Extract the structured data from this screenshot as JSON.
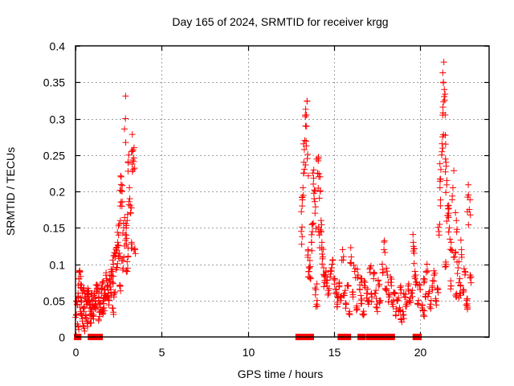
{
  "chart_data": {
    "type": "scatter",
    "title": "Day 165 of 2024, SRMTID for receiver krgg",
    "xlabel": "GPS time / hours",
    "ylabel": "SRMTID / TECUs",
    "xlim": [
      0,
      24
    ],
    "ylim": [
      0,
      0.4
    ],
    "xticks": [
      0,
      5,
      10,
      15,
      20
    ],
    "xtick_labels": [
      "0",
      "5",
      "10",
      "15",
      "20"
    ],
    "yticks": [
      0,
      0.05,
      0.1,
      0.15,
      0.2,
      0.25,
      0.3,
      0.35,
      0.4
    ],
    "ytick_labels": [
      "0",
      "0.05",
      "0.1",
      "0.15",
      "0.2",
      "0.25",
      "0.3",
      "0.35",
      "0.4"
    ],
    "grid": true,
    "legend": "none",
    "marker": "plus",
    "color": "#ff0000",
    "series": [
      {
        "name": "SRMTID",
        "points": [
          [
            0.05,
            0.03
          ],
          [
            0.1,
            0.045
          ],
          [
            0.15,
            0.06
          ],
          [
            0.2,
            0.08
          ],
          [
            0.25,
            0.09
          ],
          [
            0.3,
            0.035
          ],
          [
            0.35,
            0.05
          ],
          [
            0.4,
            0.025
          ],
          [
            0.45,
            0.065
          ],
          [
            0.5,
            0.04
          ],
          [
            0.55,
            0.055
          ],
          [
            0.6,
            0.03
          ],
          [
            0.65,
            0.045
          ],
          [
            0.7,
            0.02
          ],
          [
            0.75,
            0.06
          ],
          [
            0.8,
            0.05
          ],
          [
            0.85,
            0.04
          ],
          [
            0.9,
            0.035
          ],
          [
            0.95,
            0.055
          ],
          [
            1.0,
            0.045
          ],
          [
            1.05,
            0.03
          ],
          [
            1.1,
            0.06
          ],
          [
            1.15,
            0.05
          ],
          [
            1.2,
            0.04
          ],
          [
            1.25,
            0.065
          ],
          [
            1.3,
            0.07
          ],
          [
            1.35,
            0.055
          ],
          [
            1.4,
            0.045
          ],
          [
            1.45,
            0.035
          ],
          [
            1.5,
            0.06
          ],
          [
            1.55,
            0.075
          ],
          [
            1.6,
            0.05
          ],
          [
            1.65,
            0.04
          ],
          [
            1.7,
            0.065
          ],
          [
            1.75,
            0.055
          ],
          [
            1.8,
            0.08
          ],
          [
            1.85,
            0.07
          ],
          [
            1.9,
            0.06
          ],
          [
            1.95,
            0.05
          ],
          [
            2.0,
            0.085
          ],
          [
            2.05,
            0.065
          ],
          [
            2.1,
            0.09
          ],
          [
            2.15,
            0.075
          ],
          [
            2.2,
            0.1
          ],
          [
            2.25,
            0.06
          ],
          [
            2.3,
            0.11
          ],
          [
            2.35,
            0.12
          ],
          [
            2.4,
            0.095
          ],
          [
            2.45,
            0.13
          ],
          [
            2.5,
            0.14
          ],
          [
            2.55,
            0.115
          ],
          [
            2.6,
            0.18
          ],
          [
            2.65,
            0.22
          ],
          [
            2.7,
            0.2
          ],
          [
            2.75,
            0.105
          ],
          [
            2.8,
            0.15
          ],
          [
            2.85,
            0.125
          ],
          [
            2.9,
            0.3
          ],
          [
            2.95,
            0.14
          ],
          [
            3.0,
            0.16
          ],
          [
            3.05,
            0.11
          ],
          [
            3.1,
            0.25
          ],
          [
            3.15,
            0.19
          ],
          [
            3.2,
            0.17
          ],
          [
            3.25,
            0.13
          ],
          [
            3.3,
            0.255
          ],
          [
            3.35,
            0.23
          ],
          [
            3.4,
            0.26
          ],
          [
            3.45,
            0.12
          ],
          [
            0.5,
            0.012
          ],
          [
            1.1,
            0.042
          ],
          [
            0.3,
            0.068
          ],
          [
            0.7,
            0.058
          ],
          [
            1.6,
            0.036
          ],
          [
            2.2,
            0.034
          ],
          [
            0.15,
            0.015
          ],
          [
            0.9,
            0.025
          ],
          [
            1.4,
            0.028
          ],
          [
            2.6,
            0.07
          ],
          [
            3.0,
            0.09
          ],
          [
            13.1,
            0.145
          ],
          [
            13.15,
            0.18
          ],
          [
            13.2,
            0.205
          ],
          [
            13.25,
            0.24
          ],
          [
            13.3,
            0.27
          ],
          [
            13.35,
            0.29
          ],
          [
            13.4,
            0.305
          ],
          [
            13.45,
            0.245
          ],
          [
            13.5,
            0.12
          ],
          [
            13.55,
            0.09
          ],
          [
            13.6,
            0.105
          ],
          [
            13.65,
            0.08
          ],
          [
            13.7,
            0.13
          ],
          [
            13.75,
            0.155
          ],
          [
            13.8,
            0.21
          ],
          [
            13.85,
            0.19
          ],
          [
            13.9,
            0.17
          ],
          [
            13.95,
            0.065
          ],
          [
            14.0,
            0.045
          ],
          [
            14.05,
            0.225
          ],
          [
            14.1,
            0.245
          ],
          [
            14.15,
            0.14
          ],
          [
            14.2,
            0.2
          ],
          [
            14.25,
            0.16
          ],
          [
            14.3,
            0.13
          ],
          [
            14.35,
            0.11
          ],
          [
            14.4,
            0.095
          ],
          [
            14.45,
            0.075
          ],
          [
            14.5,
            0.085
          ],
          [
            14.6,
            0.07
          ],
          [
            14.7,
            0.06
          ],
          [
            14.8,
            0.09
          ],
          [
            14.9,
            0.1
          ],
          [
            15.0,
            0.08
          ],
          [
            15.1,
            0.065
          ],
          [
            15.2,
            0.055
          ],
          [
            15.3,
            0.075
          ],
          [
            15.4,
            0.05
          ],
          [
            15.5,
            0.12
          ],
          [
            15.6,
            0.06
          ],
          [
            15.7,
            0.045
          ],
          [
            15.8,
            0.07
          ],
          [
            15.9,
            0.035
          ],
          [
            16.0,
            0.11
          ],
          [
            16.1,
            0.055
          ],
          [
            16.2,
            0.09
          ],
          [
            16.3,
            0.04
          ],
          [
            16.4,
            0.085
          ],
          [
            16.5,
            0.065
          ],
          [
            16.6,
            0.05
          ],
          [
            16.7,
            0.03
          ],
          [
            16.8,
            0.075
          ],
          [
            16.9,
            0.06
          ],
          [
            17.0,
            0.045
          ],
          [
            17.1,
            0.095
          ],
          [
            17.2,
            0.055
          ],
          [
            17.3,
            0.08
          ],
          [
            17.4,
            0.06
          ],
          [
            17.5,
            0.04
          ],
          [
            17.6,
            0.07
          ],
          [
            17.7,
            0.05
          ],
          [
            17.8,
            0.1
          ],
          [
            17.9,
            0.12
          ],
          [
            18.0,
            0.065
          ],
          [
            18.1,
            0.085
          ],
          [
            18.2,
            0.055
          ],
          [
            18.3,
            0.075
          ],
          [
            18.4,
            0.045
          ],
          [
            18.5,
            0.06
          ],
          [
            18.6,
            0.035
          ],
          [
            18.7,
            0.05
          ],
          [
            18.8,
            0.04
          ],
          [
            18.9,
            0.065
          ],
          [
            19.0,
            0.03
          ],
          [
            19.1,
            0.055
          ],
          [
            19.2,
            0.045
          ],
          [
            19.3,
            0.07
          ],
          [
            19.4,
            0.05
          ],
          [
            19.5,
            0.06
          ],
          [
            19.6,
            0.13
          ],
          [
            19.65,
            0.115
          ],
          [
            19.7,
            0.09
          ],
          [
            19.8,
            0.075
          ],
          [
            19.9,
            0.05
          ],
          [
            20.0,
            0.065
          ],
          [
            20.1,
            0.04
          ],
          [
            20.2,
            0.08
          ],
          [
            20.3,
            0.055
          ],
          [
            20.4,
            0.1
          ],
          [
            20.5,
            0.06
          ],
          [
            20.6,
            0.045
          ],
          [
            20.7,
            0.07
          ],
          [
            20.8,
            0.085
          ],
          [
            20.9,
            0.05
          ],
          [
            21.0,
            0.065
          ],
          [
            21.1,
            0.14
          ],
          [
            21.15,
            0.205
          ],
          [
            21.2,
            0.23
          ],
          [
            21.25,
            0.25
          ],
          [
            21.3,
            0.275
          ],
          [
            21.35,
            0.35
          ],
          [
            21.4,
            0.34
          ],
          [
            21.45,
            0.305
          ],
          [
            21.5,
            0.24
          ],
          [
            21.55,
            0.215
          ],
          [
            21.6,
            0.18
          ],
          [
            21.65,
            0.17
          ],
          [
            21.7,
            0.15
          ],
          [
            21.8,
            0.13
          ],
          [
            21.9,
            0.205
          ],
          [
            22.0,
            0.11
          ],
          [
            22.1,
            0.16
          ],
          [
            22.2,
            0.095
          ],
          [
            22.3,
            0.08
          ],
          [
            22.4,
            0.12
          ],
          [
            22.5,
            0.065
          ],
          [
            22.6,
            0.09
          ],
          [
            22.7,
            0.05
          ],
          [
            22.75,
            0.04
          ],
          [
            22.8,
            0.195
          ],
          [
            22.85,
            0.175
          ],
          [
            22.9,
            0.085
          ],
          [
            22.3,
            0.06
          ],
          [
            21.8,
            0.07
          ],
          [
            15.2,
            0.045
          ],
          [
            16.6,
            0.08
          ],
          [
            18.9,
            0.025
          ],
          [
            20.2,
            0.03
          ],
          [
            21.5,
            0.1
          ],
          [
            22.1,
            0.055
          ]
        ],
        "zero_intervals_hours": [
          [
            0.05,
            0.1
          ],
          [
            0.15,
            0.2
          ],
          [
            0.85,
            1.1
          ],
          [
            1.3,
            1.35
          ],
          [
            1.4,
            1.45
          ],
          [
            12.9,
            13.4
          ],
          [
            13.5,
            13.7
          ],
          [
            15.35,
            15.55
          ],
          [
            15.65,
            15.85
          ],
          [
            16.5,
            16.7
          ],
          [
            17.0,
            17.05
          ],
          [
            17.15,
            17.6
          ],
          [
            17.85,
            17.95
          ],
          [
            18.2,
            18.4
          ],
          [
            19.7,
            19.95
          ]
        ]
      }
    ]
  }
}
